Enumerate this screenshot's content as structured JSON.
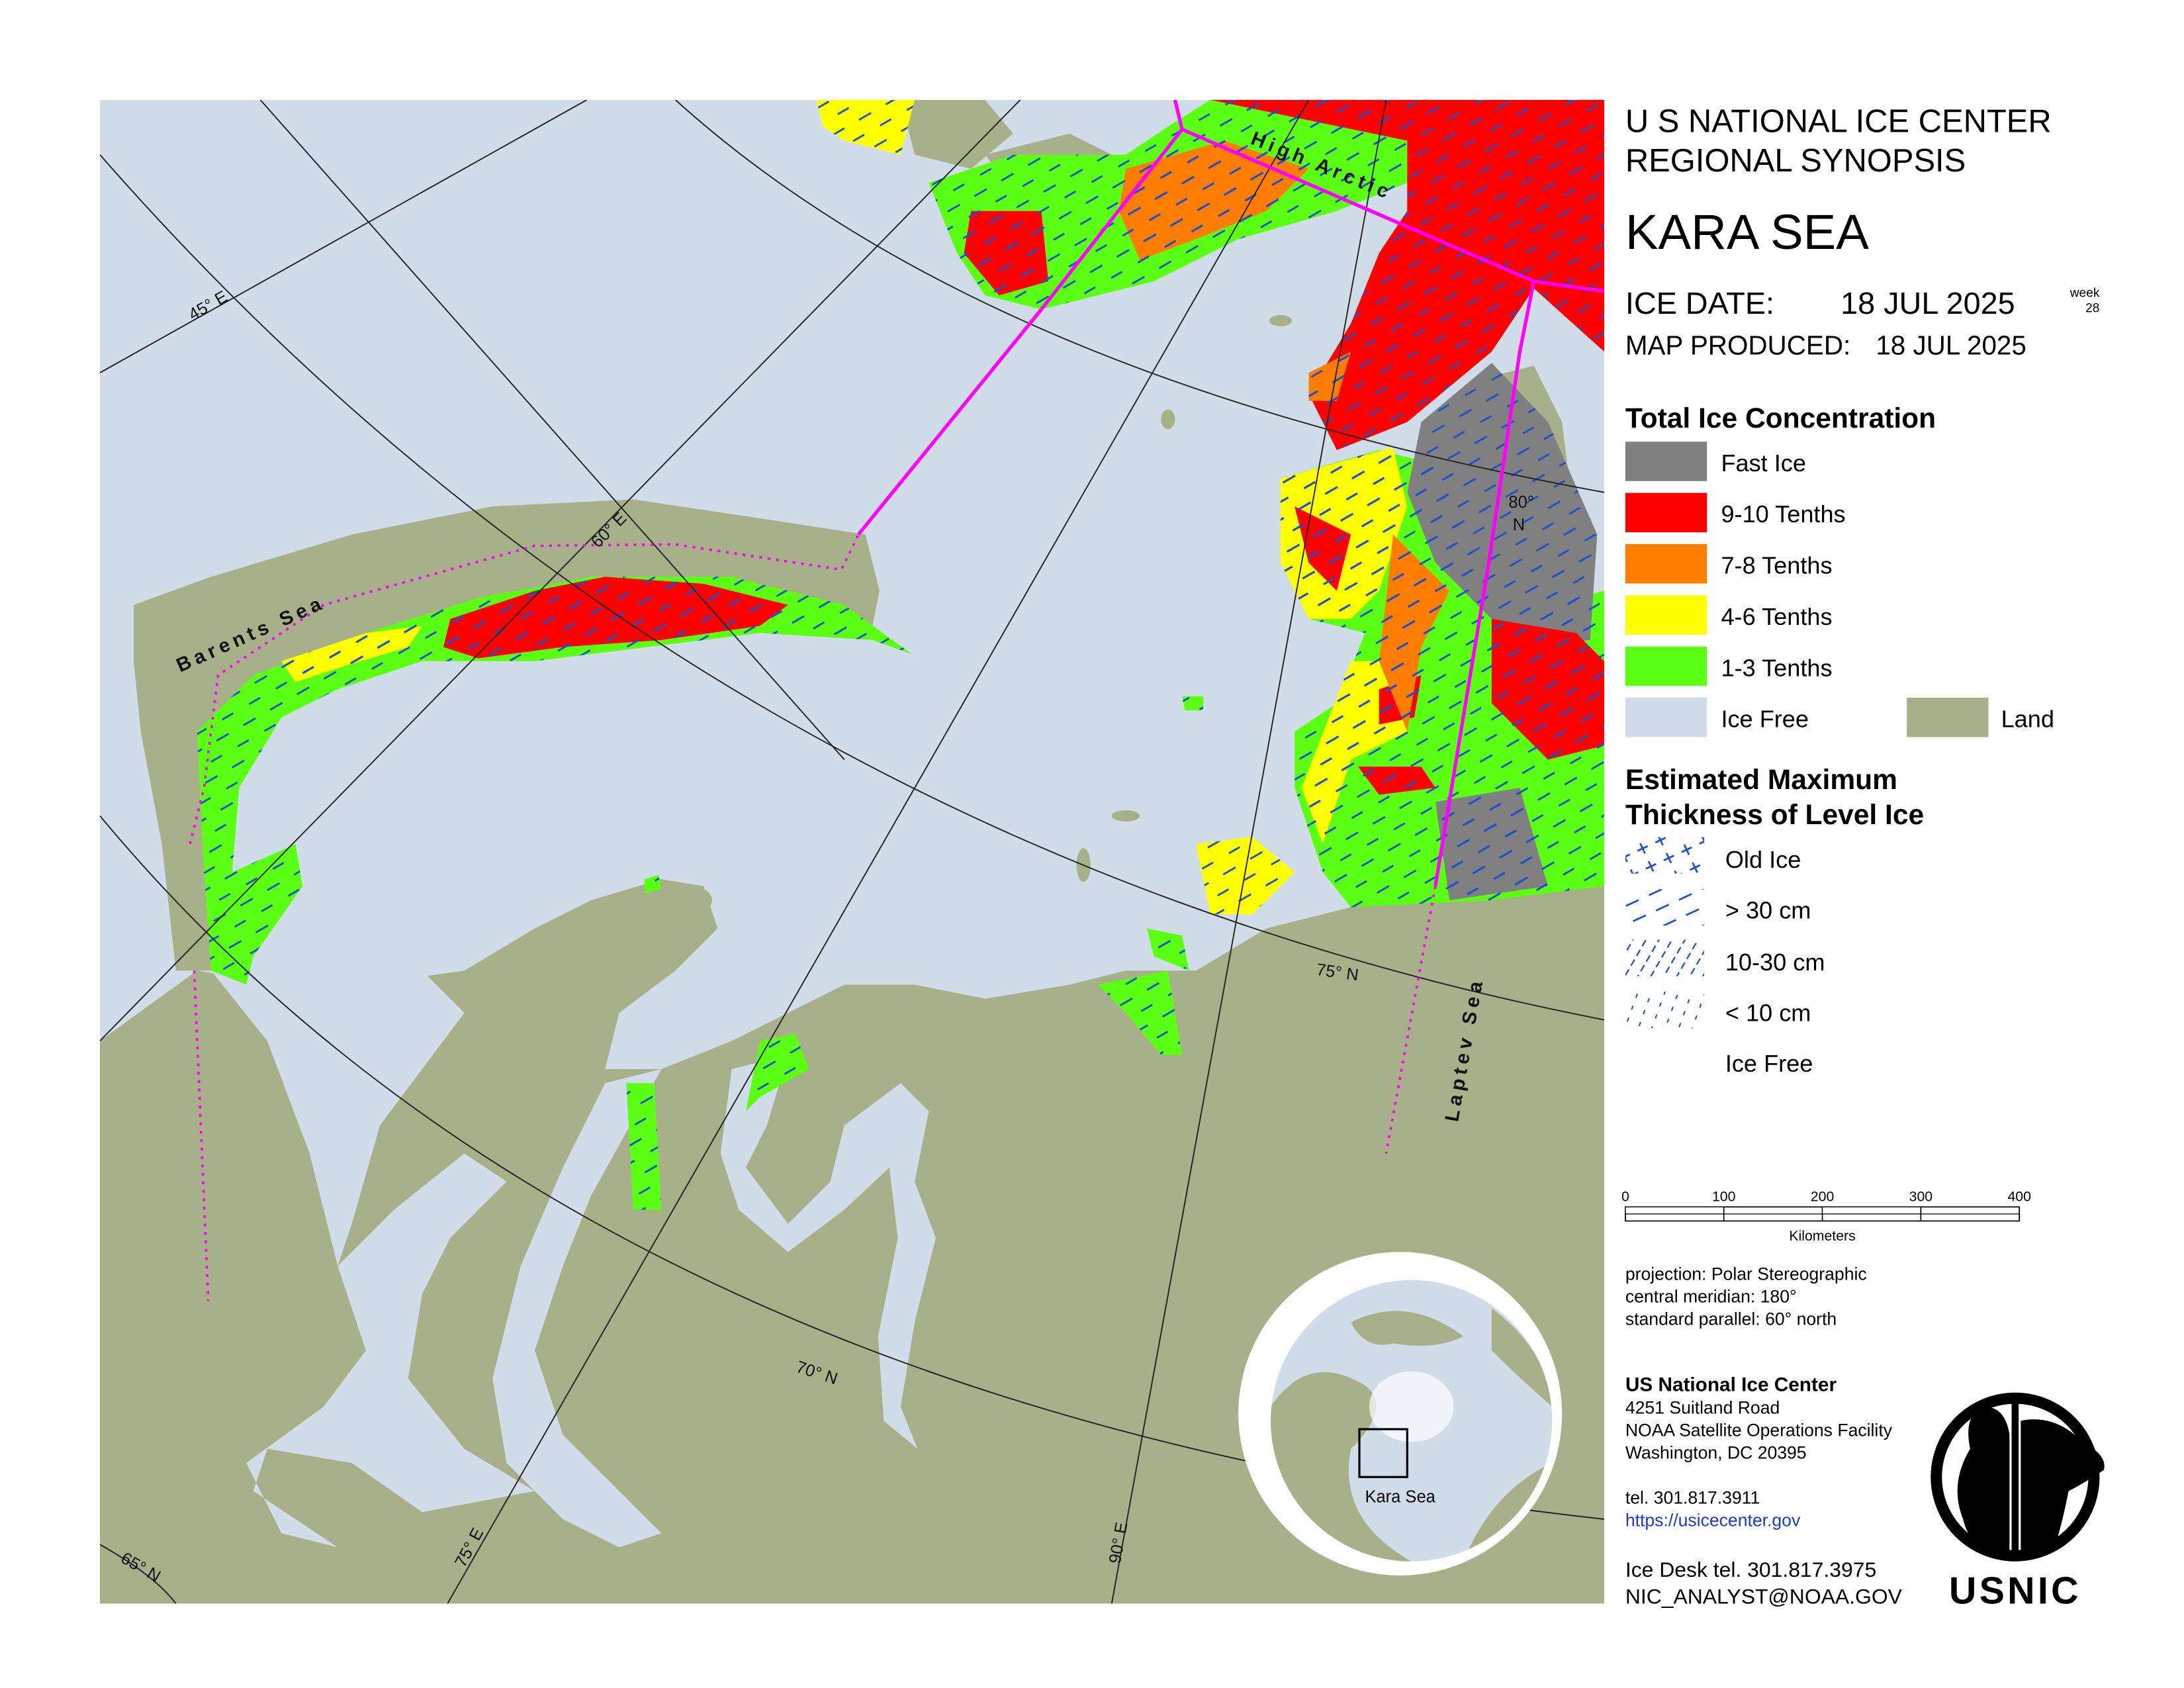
{
  "header": {
    "agency": "U S NATIONAL ICE CENTER",
    "product": "REGIONAL SYNOPSIS",
    "region": "KARA SEA",
    "ice_date_label": "ICE DATE:",
    "ice_date": "18 JUL 2025",
    "week_label": "week",
    "week": "28",
    "map_produced_label": "MAP PRODUCED:",
    "map_produced": "18 JUL 2025"
  },
  "legend": {
    "concentration_title": "Total Ice Concentration",
    "concentration": [
      {
        "label": "Fast Ice",
        "color": "#808080"
      },
      {
        "label": "9-10 Tenths",
        "color": "#ff0000"
      },
      {
        "label": "7-8 Tenths",
        "color": "#ff7d00"
      },
      {
        "label": "4-6 Tenths",
        "color": "#ffff00"
      },
      {
        "label": "1-3 Tenths",
        "color": "#5aff14"
      },
      {
        "label": "Ice Free",
        "color": "#d0dde9"
      }
    ],
    "land": {
      "label": "Land",
      "color": "#a7b088"
    },
    "thickness_title": [
      "Estimated Maximum",
      "Thickness of Level Ice"
    ],
    "thickness": [
      "Old Ice",
      "> 30 cm",
      "10-30 cm",
      "< 10 cm",
      "Ice Free"
    ]
  },
  "map": {
    "labels": {
      "barents_sea": "Barents Sea",
      "high_arctic": "High Arctic",
      "laptev_sea": "Laptev Sea",
      "lon45": "45° E",
      "lon60": "60° E",
      "lon75": "75° E",
      "lon90": "90° E",
      "lat65": "65° N",
      "lat70": "70° N",
      "lat75": "75° N",
      "lat80": [
        "80°",
        "N"
      ]
    }
  },
  "scale_bar": {
    "ticks": [
      "0",
      "100",
      "200",
      "300",
      "400"
    ],
    "unit": "Kilometers"
  },
  "projection": [
    "projection: Polar Stereographic",
    "central meridian: 180°",
    "standard parallel:  60° north"
  ],
  "inset": {
    "label": "Kara Sea"
  },
  "contact": {
    "name": "US National Ice Center",
    "address": [
      "4251 Suitland Road",
      "NOAA Satellite Operations Facility",
      "Washington, DC  20395"
    ],
    "tel": "tel. 301.817.3911",
    "url": "https://usicecenter.gov",
    "ice_desk": "Ice Desk tel. 301.817.3975",
    "email": "NIC_ANALYST@NOAA.GOV"
  },
  "logo": {
    "text": "USNIC"
  }
}
